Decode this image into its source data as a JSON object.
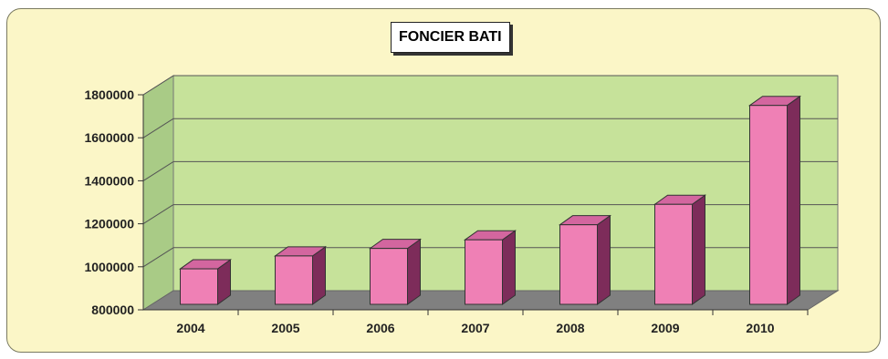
{
  "chart_data": {
    "type": "bar",
    "title": "FONCIER BATI",
    "categories": [
      "2004",
      "2005",
      "2006",
      "2007",
      "2008",
      "2009",
      "2010"
    ],
    "values": [
      965000,
      1025000,
      1060000,
      1100000,
      1170000,
      1265000,
      1725000
    ],
    "yticks": [
      "800000",
      "1000000",
      "1200000",
      "1400000",
      "1600000",
      "1800000"
    ],
    "ylim": [
      800000,
      1800000
    ],
    "grid": true,
    "legend": "none",
    "colors": {
      "bar_front": "#ef80b5",
      "bar_top": "#d3669f",
      "bar_side": "#7d2c5a",
      "back_wall": "#c6e29a",
      "side_wall": "#a9cb86",
      "floor": "#808080",
      "panel": "#fbf6c7"
    }
  }
}
